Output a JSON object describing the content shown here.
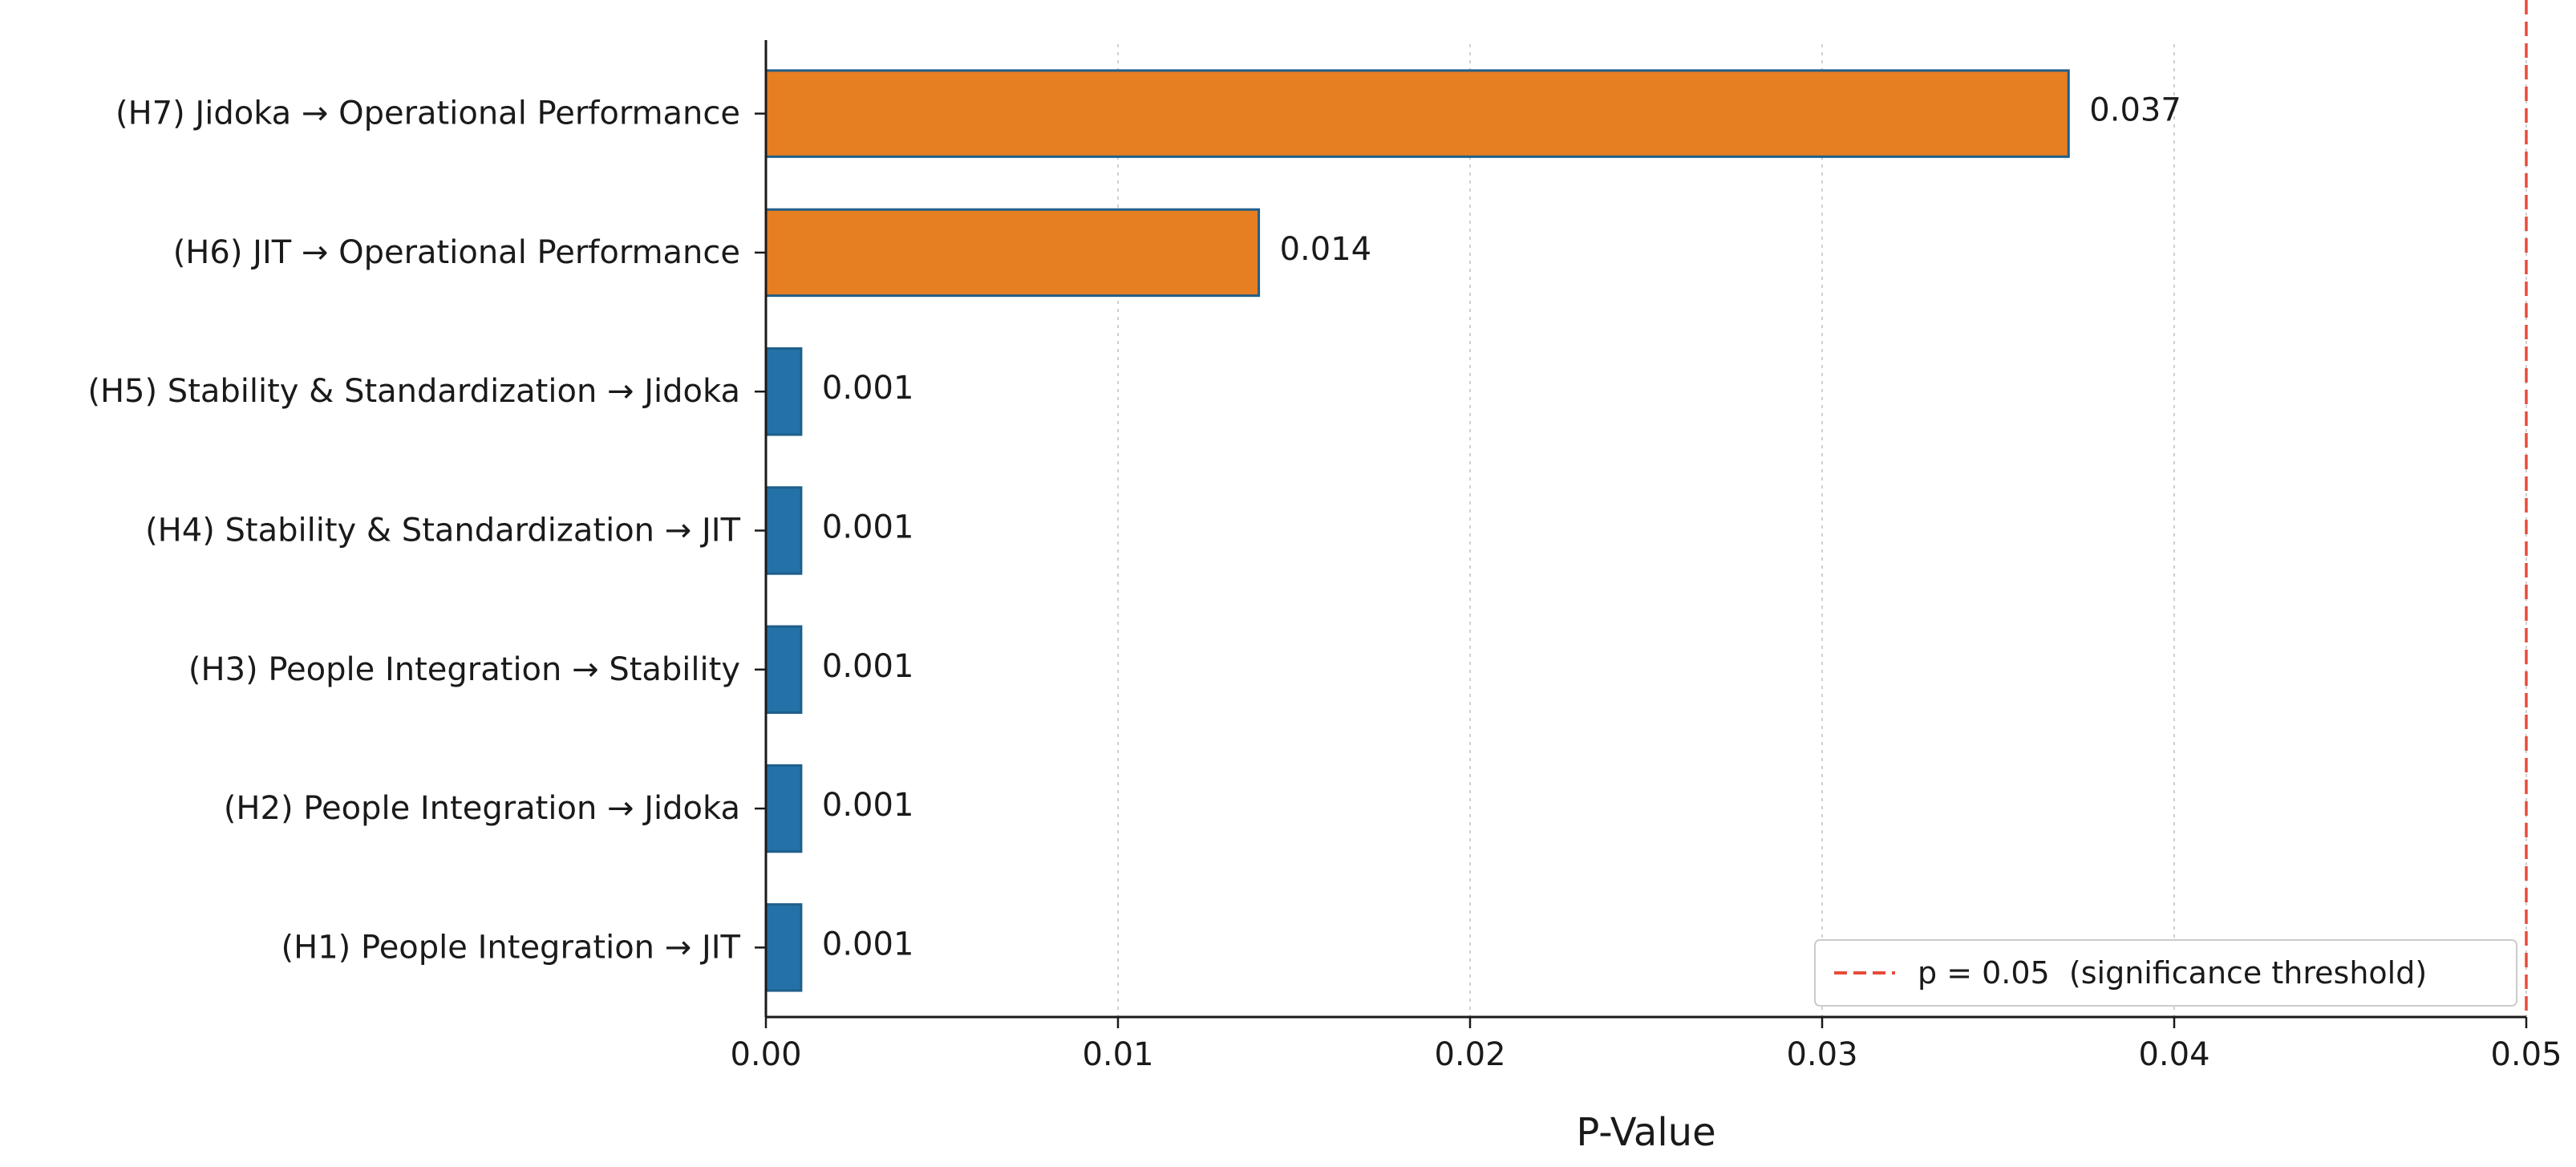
{
  "chart_data": {
    "type": "bar",
    "orientation": "horizontal",
    "title": "",
    "xlabel": "P-Value",
    "ylabel": "",
    "xlim": [
      0,
      0.05
    ],
    "x_ticks": [
      0.0,
      0.01,
      0.02,
      0.03,
      0.04,
      0.05
    ],
    "x_tick_labels": [
      "0.00",
      "0.01",
      "0.02",
      "0.03",
      "0.04",
      "0.05"
    ],
    "grid": "vertical dotted",
    "categories": [
      "(H1) People Integration → JIT",
      "(H2) People Integration → Jidoka",
      "(H3) People Integration → Stability",
      "(H4) Stability & Standardization → JIT",
      "(H5) Stability & Standardization → Jidoka",
      "(H6) JIT → Operational Performance",
      "(H7) Jidoka → Operational Performance"
    ],
    "values": [
      0.001,
      0.001,
      0.001,
      0.001,
      0.001,
      0.014,
      0.037
    ],
    "value_labels": [
      "0.001",
      "0.001",
      "0.001",
      "0.001",
      "0.001",
      "0.014",
      "0.037"
    ],
    "bar_colors": [
      "#2471a8",
      "#2471a8",
      "#2471a8",
      "#2471a8",
      "#2471a8",
      "#e67e22",
      "#e67e22"
    ],
    "bar_edge_color": "#1f5f8b",
    "threshold": {
      "value": 0.05,
      "color": "#e74c3c",
      "style": "dashed",
      "legend_label": "p = 0.05  (significance threshold)"
    },
    "legend_position": "lower-right"
  }
}
